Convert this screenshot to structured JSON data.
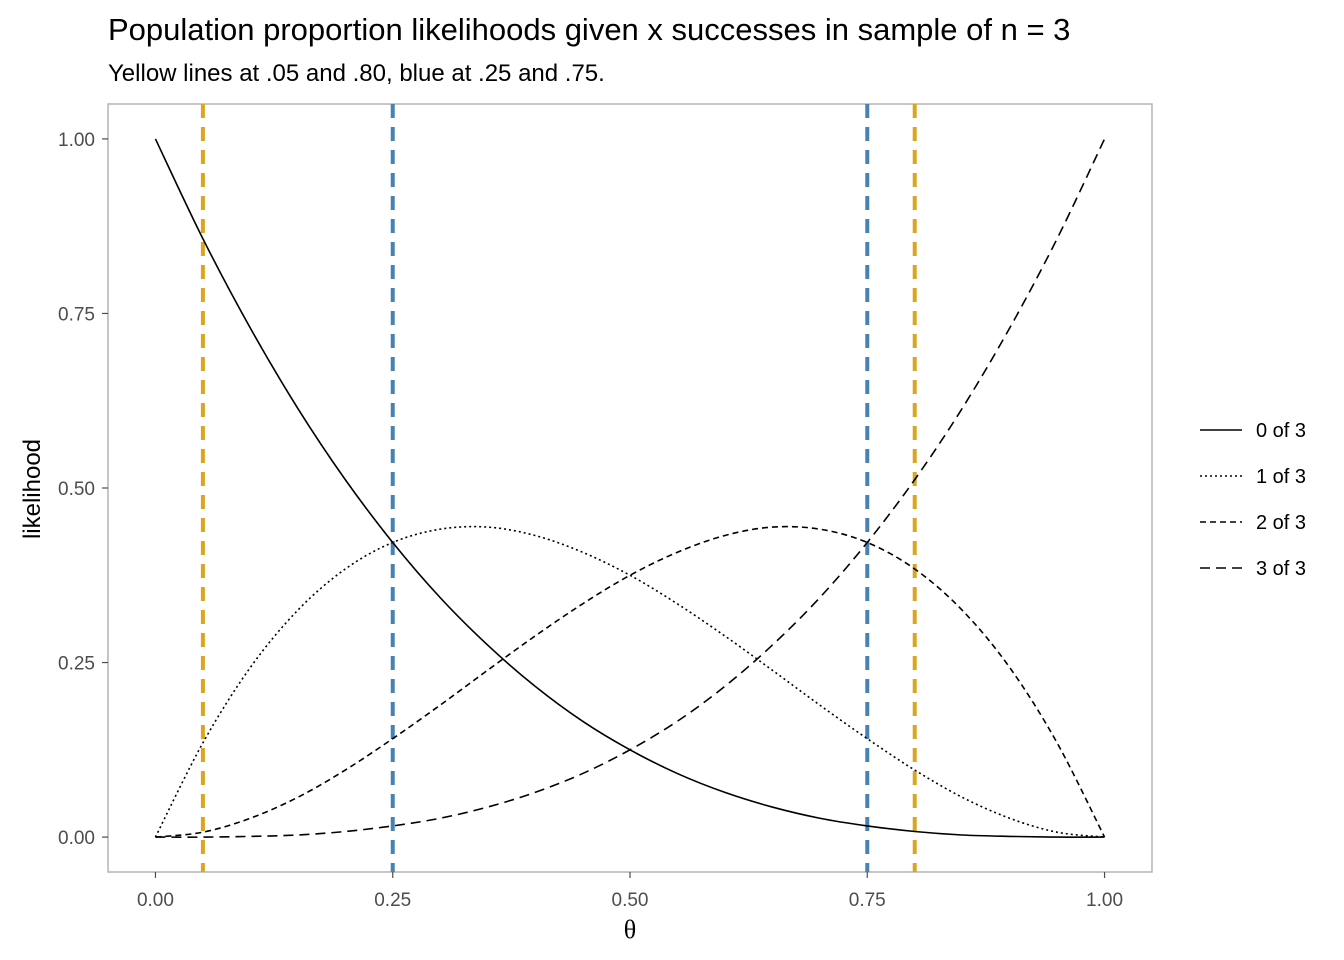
{
  "chart_data": {
    "type": "line",
    "title": "Population proportion likelihoods given x successes in sample of n = 3",
    "subtitle": "Yellow lines at .05 and .80, blue at .25 and .75.",
    "xlabel": "θ",
    "ylabel": "likelihood",
    "xlim": [
      -0.05,
      1.05
    ],
    "ylim": [
      -0.05,
      1.05
    ],
    "xticks": [
      0.0,
      0.25,
      0.5,
      0.75,
      1.0
    ],
    "xtick_labels": [
      "0.00",
      "0.25",
      "0.50",
      "0.75",
      "1.00"
    ],
    "yticks": [
      0.0,
      0.25,
      0.5,
      0.75,
      1.0
    ],
    "ytick_labels": [
      "0.00",
      "0.25",
      "0.50",
      "0.75",
      "1.00"
    ],
    "grid": false,
    "legend_position": "right",
    "x": [
      0.0,
      0.05,
      0.1,
      0.15,
      0.2,
      0.25,
      0.3,
      0.35,
      0.4,
      0.45,
      0.5,
      0.55,
      0.6,
      0.65,
      0.7,
      0.75,
      0.8,
      0.85,
      0.9,
      0.95,
      1.0
    ],
    "series": [
      {
        "name": "0 of 3",
        "linetype": "solid",
        "values": [
          1.0,
          0.857,
          0.729,
          0.614,
          0.512,
          0.422,
          0.343,
          0.275,
          0.216,
          0.166,
          0.125,
          0.091,
          0.064,
          0.043,
          0.027,
          0.016,
          0.008,
          0.003,
          0.001,
          0.0,
          0.0
        ]
      },
      {
        "name": "1 of 3",
        "linetype": "dotted",
        "values": [
          0.0,
          0.135,
          0.243,
          0.325,
          0.384,
          0.422,
          0.441,
          0.444,
          0.432,
          0.408,
          0.375,
          0.334,
          0.288,
          0.239,
          0.189,
          0.141,
          0.096,
          0.057,
          0.027,
          0.007,
          0.0
        ]
      },
      {
        "name": "2 of 3",
        "linetype": "dashed",
        "values": [
          0.0,
          0.007,
          0.027,
          0.057,
          0.096,
          0.141,
          0.189,
          0.239,
          0.288,
          0.334,
          0.375,
          0.408,
          0.432,
          0.444,
          0.441,
          0.422,
          0.384,
          0.325,
          0.243,
          0.135,
          0.0
        ]
      },
      {
        "name": "3 of 3",
        "linetype": "longdash",
        "values": [
          0.0,
          0.0,
          0.001,
          0.003,
          0.008,
          0.016,
          0.027,
          0.043,
          0.064,
          0.091,
          0.125,
          0.166,
          0.216,
          0.275,
          0.343,
          0.422,
          0.512,
          0.614,
          0.729,
          0.857,
          1.0
        ]
      }
    ],
    "vlines": [
      {
        "x": 0.05,
        "color": "#DAA520"
      },
      {
        "x": 0.8,
        "color": "#DAA520"
      },
      {
        "x": 0.25,
        "color": "#4682B4"
      },
      {
        "x": 0.75,
        "color": "#4682B4"
      }
    ]
  }
}
